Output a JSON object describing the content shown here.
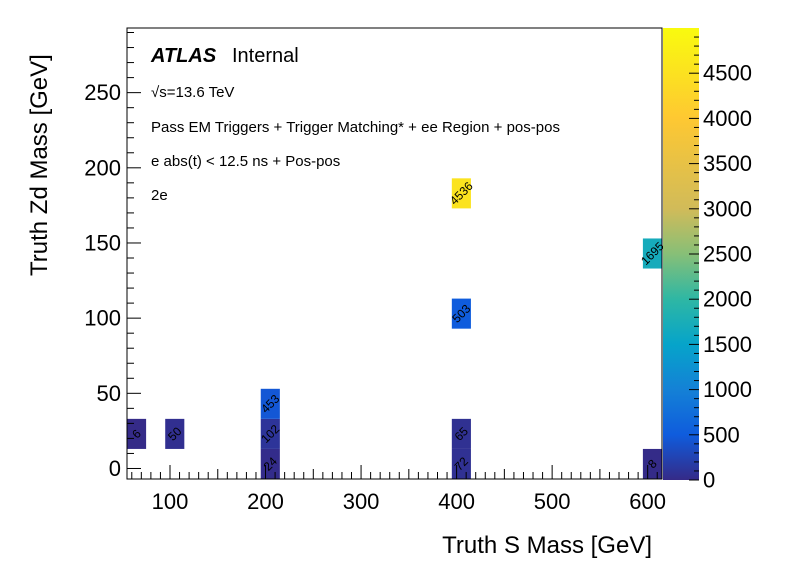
{
  "chart_data": {
    "type": "heatmap",
    "xlabel": "Truth S Mass [GeV]",
    "ylabel": "Truth Zd Mass [GeV]",
    "xlim": [
      55,
      615
    ],
    "ylim": [
      -7,
      293
    ],
    "x_ticks": [
      "100",
      "200",
      "300",
      "400",
      "500",
      "600"
    ],
    "y_ticks": [
      "0",
      "50",
      "100",
      "150",
      "200",
      "250"
    ],
    "bin_width": [
      20,
      20
    ],
    "z_range": [
      0,
      5000
    ],
    "z_ticks": [
      "0",
      "500",
      "1000",
      "1500",
      "2000",
      "2500",
      "3000",
      "3500",
      "4000",
      "4500"
    ],
    "cells": [
      {
        "x": 65,
        "y": 23,
        "z": 6,
        "label": "6"
      },
      {
        "x": 105,
        "y": 23,
        "z": 50,
        "label": "50"
      },
      {
        "x": 205,
        "y": 3,
        "z": 24,
        "label": "24"
      },
      {
        "x": 205,
        "y": 23,
        "z": 102,
        "label": "102"
      },
      {
        "x": 205,
        "y": 43,
        "z": 453,
        "label": "453"
      },
      {
        "x": 405,
        "y": 3,
        "z": 72,
        "label": "72"
      },
      {
        "x": 405,
        "y": 23,
        "z": 65,
        "label": "65"
      },
      {
        "x": 405,
        "y": 103,
        "z": 503,
        "label": "503"
      },
      {
        "x": 405,
        "y": 183,
        "z": 4536,
        "label": "4536"
      },
      {
        "x": 605,
        "y": 3,
        "z": 8,
        "label": "8"
      },
      {
        "x": 605,
        "y": 143,
        "z": 1695,
        "label": "1695"
      }
    ]
  },
  "annotations": {
    "atlas": "ATLAS",
    "atlas_status": "Internal",
    "energy": "√s=13.6 TeV",
    "selection": "Pass EM Triggers + Trigger Matching* + ee Region + pos-pos",
    "timing": "e abs(t) < 12.5 ns + Pos-pos",
    "channel": "2e"
  }
}
